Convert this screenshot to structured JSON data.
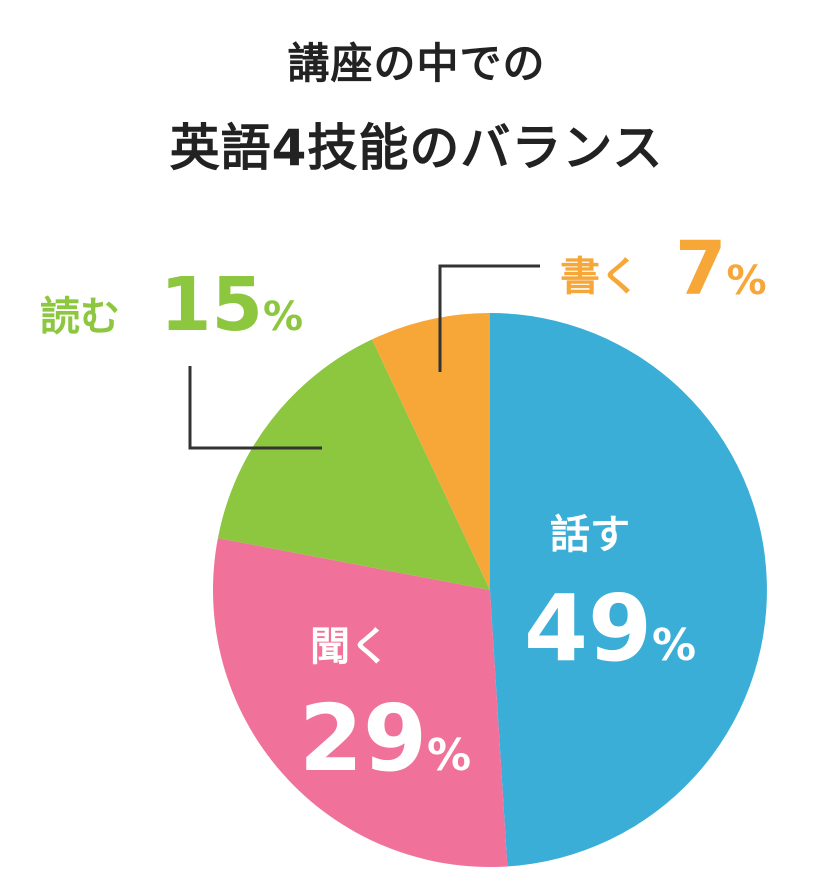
{
  "chart_data": {
    "type": "pie",
    "title": [
      "講座の中での",
      "英語4技能のバランス"
    ],
    "slices": [
      {
        "label": "話す",
        "value": 49,
        "percent_text": "49",
        "unit": "%",
        "color": "#3aaed6"
      },
      {
        "label": "聞く",
        "value": 29,
        "percent_text": "29",
        "unit": "%",
        "color": "#f07199"
      },
      {
        "label": "読む",
        "value": 15,
        "percent_text": "15",
        "unit": "%",
        "color": "#8dc63f"
      },
      {
        "label": "書く",
        "value": 7,
        "percent_text": "7",
        "unit": "%",
        "color": "#f7a737"
      }
    ],
    "start": "12 o'clock",
    "direction": "clockwise"
  }
}
